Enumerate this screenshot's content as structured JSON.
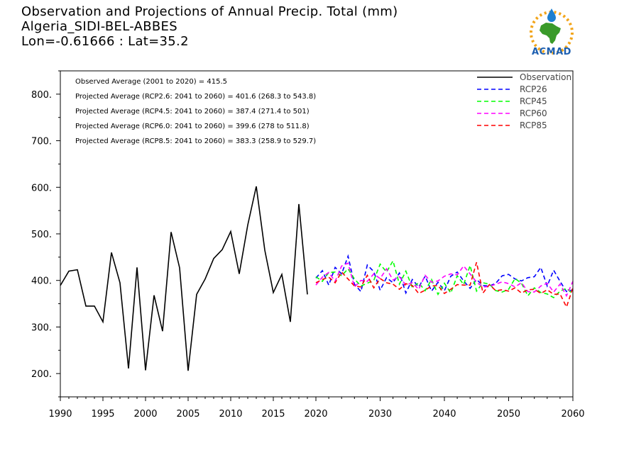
{
  "title": {
    "line1": "Observation and Projections of Annual Precip. Total (mm)",
    "line2": "Algeria_SIDI-BEL-ABBES",
    "line3": "Lon=-0.61666 : Lat=35.2"
  },
  "logo": {
    "text": "ACMAD"
  },
  "stats": [
    "Observed Average (2001 to 2020) = 415.5",
    "Projected Average (RCP2.6: 2041 to 2060) = 401.6 (268.3 to 543.8)",
    "Projected Average (RCP4.5: 2041 to 2060) = 387.4 (271.4 to 501)",
    "Projected Average (RCP6.0: 2041 to 2060) = 399.6 (278 to 511.8)",
    "Projected Average (RCP8.5: 2041 to 2060) = 383.3 (258.9 to 529.7)"
  ],
  "chart_data": {
    "type": "line",
    "xlim": [
      1990,
      2060
    ],
    "ylim": [
      150,
      850
    ],
    "x_ticks": [
      "1990",
      "1995",
      "2000",
      "2005",
      "2010",
      "2015",
      "2020",
      "2030",
      "2040",
      "2050",
      "2060"
    ],
    "y_ticks": [
      "200.",
      "300.",
      "400.",
      "500.",
      "600.",
      "700.",
      "800."
    ],
    "legend": [
      "Observation",
      "RCP26",
      "RCP45",
      "RCP60",
      "RCP85"
    ],
    "series": [
      {
        "name": "Observation",
        "color": "#000000",
        "dashed": false,
        "x": [
          1990,
          1991,
          1992,
          1993,
          1994,
          1995,
          1996,
          1997,
          1998,
          1999,
          2000,
          2001,
          2002,
          2003,
          2004,
          2005,
          2006,
          2007,
          2008,
          2009,
          2010,
          2011,
          2012,
          2013,
          2014,
          2015,
          2016,
          2017,
          2018,
          2019
        ],
        "y": [
          389,
          420,
          423,
          345,
          345,
          311,
          460,
          395,
          211,
          428,
          207,
          368,
          291,
          504,
          427,
          206,
          370,
          403,
          447,
          466,
          505,
          414,
          519,
          602,
          465,
          374,
          413,
          311,
          564,
          370
        ]
      },
      {
        "name": "RCP26",
        "color": "#0000ff",
        "dashed": true,
        "x": [
          2020,
          2021,
          2022,
          2023,
          2024,
          2025,
          2026,
          2027,
          2028,
          2029,
          2030,
          2031,
          2032,
          2033,
          2034,
          2035,
          2036,
          2037,
          2038,
          2039,
          2040,
          2041,
          2042,
          2043,
          2044,
          2045,
          2046,
          2047,
          2048,
          2049,
          2050,
          2051,
          2052,
          2053,
          2054,
          2055,
          2056,
          2057,
          2058,
          2059,
          2060
        ],
        "y": [
          405,
          421,
          390,
          428,
          414,
          452,
          392,
          376,
          433,
          419,
          379,
          406,
          395,
          416,
          373,
          402,
          386,
          409,
          377,
          396,
          378,
          409,
          418,
          399,
          383,
          402,
          389,
          388,
          394,
          410,
          413,
          403,
          399,
          406,
          408,
          428,
          388,
          422,
          398,
          376,
          380
        ]
      },
      {
        "name": "RCP45",
        "color": "#00ff00",
        "dashed": true,
        "x": [
          2020,
          2021,
          2022,
          2023,
          2024,
          2025,
          2026,
          2027,
          2028,
          2029,
          2030,
          2031,
          2032,
          2033,
          2034,
          2035,
          2036,
          2037,
          2038,
          2039,
          2040,
          2041,
          2042,
          2043,
          2044,
          2045,
          2046,
          2047,
          2048,
          2049,
          2050,
          2051,
          2052,
          2053,
          2054,
          2055,
          2056,
          2057,
          2058,
          2059,
          2060
        ],
        "y": [
          408,
          398,
          417,
          418,
          410,
          425,
          403,
          388,
          394,
          400,
          435,
          418,
          442,
          392,
          420,
          385,
          395,
          378,
          402,
          370,
          394,
          373,
          410,
          391,
          432,
          377,
          395,
          392,
          378,
          375,
          381,
          404,
          394,
          367,
          384,
          374,
          371,
          363,
          377,
          383,
          371
        ]
      },
      {
        "name": "RCP60",
        "color": "#ff00ff",
        "dashed": true,
        "x": [
          2020,
          2021,
          2022,
          2023,
          2024,
          2025,
          2026,
          2027,
          2028,
          2029,
          2030,
          2031,
          2032,
          2033,
          2034,
          2035,
          2036,
          2037,
          2038,
          2039,
          2040,
          2041,
          2042,
          2043,
          2044,
          2045,
          2046,
          2047,
          2048,
          2049,
          2050,
          2051,
          2052,
          2053,
          2054,
          2055,
          2056,
          2057,
          2058,
          2059,
          2060
        ],
        "y": [
          390,
          407,
          417,
          398,
          431,
          437,
          386,
          400,
          398,
          414,
          404,
          425,
          401,
          408,
          390,
          395,
          381,
          411,
          396,
          399,
          409,
          414,
          412,
          431,
          414,
          396,
          386,
          387,
          392,
          397,
          393,
          386,
          395,
          376,
          375,
          388,
          394,
          375,
          392,
          367,
          398
        ]
      },
      {
        "name": "RCP85",
        "color": "#ff0000",
        "dashed": true,
        "x": [
          2020,
          2021,
          2022,
          2023,
          2024,
          2025,
          2026,
          2027,
          2028,
          2029,
          2030,
          2031,
          2032,
          2033,
          2034,
          2035,
          2036,
          2037,
          2038,
          2039,
          2040,
          2041,
          2042,
          2043,
          2044,
          2045,
          2046,
          2047,
          2048,
          2049,
          2050,
          2051,
          2052,
          2053,
          2054,
          2055,
          2056,
          2057,
          2058,
          2059,
          2060
        ],
        "y": [
          395,
          402,
          407,
          395,
          418,
          403,
          388,
          386,
          411,
          384,
          404,
          395,
          392,
          381,
          393,
          389,
          372,
          379,
          388,
          389,
          372,
          381,
          391,
          390,
          390,
          439,
          373,
          391,
          378,
          380,
          377,
          384,
          373,
          380,
          381,
          372,
          380,
          370,
          371,
          343,
          384
        ]
      }
    ]
  }
}
